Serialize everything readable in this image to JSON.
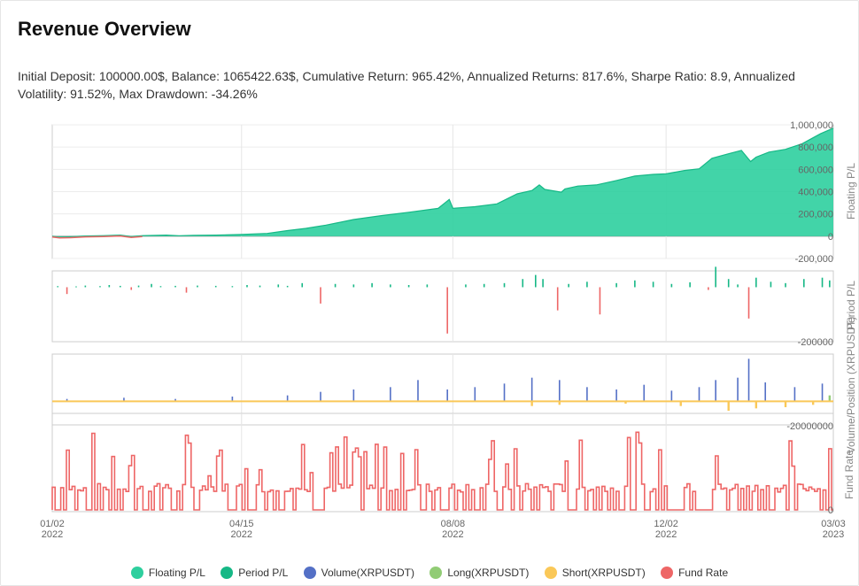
{
  "title": "Revenue Overview",
  "summary": "Initial Deposit: 100000.00$, Balance: 1065422.63$, Cumulative Return: 965.42%, Annualized Returns: 817.6%, Sharpe Ratio: 8.9, Annualized Volatility: 91.52%, Max Drawdown: -34.26%",
  "legend": [
    {
      "label": "Floating P/L",
      "color": "#2ecf9e"
    },
    {
      "label": "Period P/L",
      "color": "#16b886"
    },
    {
      "label": "Volume(XRPUSDT)",
      "color": "#5470c6"
    },
    {
      "label": "Long(XRPUSDT)",
      "color": "#91cc75"
    },
    {
      "label": "Short(XRPUSDT)",
      "color": "#fac858"
    },
    {
      "label": "Fund Rate",
      "color": "#ee6666"
    }
  ],
  "chart_data": {
    "type": "area",
    "x_range": [
      "2022-01-02",
      "2023-03-03"
    ],
    "x_ticks": [
      {
        "date": "2022-01-02",
        "line1": "01/02",
        "line2": "2022"
      },
      {
        "date": "2022-04-15",
        "line1": "04/15",
        "line2": "2022"
      },
      {
        "date": "2022-08-08",
        "line1": "08/08",
        "line2": "2022"
      },
      {
        "date": "2022-12-02",
        "line1": "12/02",
        "line2": "2022"
      },
      {
        "date": "2023-03-03",
        "line1": "03/03",
        "line2": "2023"
      }
    ],
    "panels": [
      {
        "name": "Floating P/L",
        "ylabel": "Floating P/L",
        "ylim": [
          -200000,
          1000000
        ],
        "yticks": [
          -200000,
          0,
          200000,
          400000,
          600000,
          800000,
          1000000
        ],
        "ytick_labels": [
          "-200,000",
          "0",
          "200,000",
          "400,000",
          "600,000",
          "800,000",
          "1,000,000"
        ],
        "color": "#2ecf9e",
        "negative_color": "#ee6666",
        "points": [
          [
            "2022-01-02",
            0
          ],
          [
            "2022-01-06",
            -10000
          ],
          [
            "2022-01-12",
            -5000
          ],
          [
            "2022-01-20",
            2000
          ],
          [
            "2022-01-30",
            5000
          ],
          [
            "2022-02-08",
            10000
          ],
          [
            "2022-02-14",
            -3000
          ],
          [
            "2022-02-20",
            5000
          ],
          [
            "2022-03-05",
            10000
          ],
          [
            "2022-03-12",
            4000
          ],
          [
            "2022-03-20",
            8000
          ],
          [
            "2022-04-01",
            10000
          ],
          [
            "2022-04-15",
            15000
          ],
          [
            "2022-04-29",
            25000
          ],
          [
            "2022-05-10",
            50000
          ],
          [
            "2022-05-20",
            70000
          ],
          [
            "2022-05-31",
            100000
          ],
          [
            "2022-06-15",
            150000
          ],
          [
            "2022-06-30",
            185000
          ],
          [
            "2022-07-15",
            215000
          ],
          [
            "2022-07-31",
            250000
          ],
          [
            "2022-08-06",
            330000
          ],
          [
            "2022-08-08",
            250000
          ],
          [
            "2022-08-20",
            265000
          ],
          [
            "2022-09-01",
            290000
          ],
          [
            "2022-09-12",
            380000
          ],
          [
            "2022-09-20",
            410000
          ],
          [
            "2022-09-24",
            460000
          ],
          [
            "2022-09-27",
            420000
          ],
          [
            "2022-10-06",
            395000
          ],
          [
            "2022-10-08",
            425000
          ],
          [
            "2022-10-15",
            450000
          ],
          [
            "2022-10-25",
            460000
          ],
          [
            "2022-11-05",
            500000
          ],
          [
            "2022-11-15",
            540000
          ],
          [
            "2022-11-25",
            555000
          ],
          [
            "2022-12-02",
            560000
          ],
          [
            "2022-12-12",
            590000
          ],
          [
            "2022-12-20",
            605000
          ],
          [
            "2022-12-27",
            700000
          ],
          [
            "2023-01-05",
            740000
          ],
          [
            "2023-01-12",
            770000
          ],
          [
            "2023-01-17",
            670000
          ],
          [
            "2023-01-20",
            710000
          ],
          [
            "2023-01-27",
            755000
          ],
          [
            "2023-02-05",
            780000
          ],
          [
            "2023-02-14",
            830000
          ],
          [
            "2023-02-24",
            920000
          ],
          [
            "2023-03-03",
            970000
          ]
        ]
      },
      {
        "name": "Period P/L",
        "ylabel": "Period P/L",
        "ylim": [
          -200000,
          60000
        ],
        "ytick_labels": [
          "-200000"
        ],
        "color": "#16b886",
        "negative_color": "#ee6666",
        "bars": [
          [
            "2022-01-05",
            4000
          ],
          [
            "2022-01-10",
            -25000
          ],
          [
            "2022-01-15",
            3000
          ],
          [
            "2022-01-20",
            6000
          ],
          [
            "2022-01-28",
            4000
          ],
          [
            "2022-02-02",
            8000
          ],
          [
            "2022-02-08",
            5000
          ],
          [
            "2022-02-14",
            -10000
          ],
          [
            "2022-02-18",
            6000
          ],
          [
            "2022-02-25",
            12000
          ],
          [
            "2022-03-02",
            4000
          ],
          [
            "2022-03-10",
            5000
          ],
          [
            "2022-03-16",
            -20000
          ],
          [
            "2022-03-22",
            6000
          ],
          [
            "2022-04-01",
            5000
          ],
          [
            "2022-04-10",
            4000
          ],
          [
            "2022-04-18",
            8000
          ],
          [
            "2022-04-25",
            6000
          ],
          [
            "2022-05-05",
            10000
          ],
          [
            "2022-05-10",
            5000
          ],
          [
            "2022-05-18",
            15000
          ],
          [
            "2022-05-28",
            -60000
          ],
          [
            "2022-06-05",
            12000
          ],
          [
            "2022-06-15",
            10000
          ],
          [
            "2022-06-25",
            15000
          ],
          [
            "2022-07-05",
            10000
          ],
          [
            "2022-07-15",
            8000
          ],
          [
            "2022-07-25",
            10000
          ],
          [
            "2022-08-05",
            -170000
          ],
          [
            "2022-08-15",
            10000
          ],
          [
            "2022-08-25",
            12000
          ],
          [
            "2022-09-05",
            15000
          ],
          [
            "2022-09-15",
            30000
          ],
          [
            "2022-09-22",
            45000
          ],
          [
            "2022-09-26",
            30000
          ],
          [
            "2022-10-04",
            -85000
          ],
          [
            "2022-10-10",
            12000
          ],
          [
            "2022-10-20",
            20000
          ],
          [
            "2022-10-27",
            -100000
          ],
          [
            "2022-11-05",
            15000
          ],
          [
            "2022-11-15",
            25000
          ],
          [
            "2022-11-25",
            20000
          ],
          [
            "2022-12-05",
            12000
          ],
          [
            "2022-12-15",
            18000
          ],
          [
            "2022-12-25",
            -10000
          ],
          [
            "2022-12-29",
            75000
          ],
          [
            "2023-01-05",
            30000
          ],
          [
            "2023-01-10",
            10000
          ],
          [
            "2023-01-16",
            -115000
          ],
          [
            "2023-01-20",
            35000
          ],
          [
            "2023-01-28",
            20000
          ],
          [
            "2023-02-05",
            15000
          ],
          [
            "2023-02-15",
            30000
          ],
          [
            "2023-02-25",
            35000
          ],
          [
            "2023-03-01",
            25000
          ]
        ]
      },
      {
        "name": "Volume/Position (XRPUSDT)",
        "ylabel": "Volume/Position (XRPUSDT)",
        "ylim": [
          -20000000,
          40000000
        ],
        "ytick_labels": [
          "-20000000"
        ],
        "volume_color": "#5470c6",
        "long_color": "#91cc75",
        "short_color": "#fac858",
        "volume": [
          [
            "2022-01-10",
            2000000
          ],
          [
            "2022-02-10",
            3000000
          ],
          [
            "2022-03-10",
            2000000
          ],
          [
            "2022-04-10",
            4000000
          ],
          [
            "2022-05-10",
            5000000
          ],
          [
            "2022-05-28",
            8000000
          ],
          [
            "2022-06-15",
            10000000
          ],
          [
            "2022-07-05",
            12000000
          ],
          [
            "2022-07-20",
            18000000
          ],
          [
            "2022-08-05",
            10000000
          ],
          [
            "2022-08-20",
            12000000
          ],
          [
            "2022-09-05",
            15000000
          ],
          [
            "2022-09-20",
            20000000
          ],
          [
            "2022-10-05",
            18000000
          ],
          [
            "2022-10-20",
            12000000
          ],
          [
            "2022-11-05",
            10000000
          ],
          [
            "2022-11-20",
            14000000
          ],
          [
            "2022-12-05",
            9000000
          ],
          [
            "2022-12-20",
            12000000
          ],
          [
            "2022-12-29",
            18000000
          ],
          [
            "2023-01-10",
            20000000
          ],
          [
            "2023-01-16",
            36000000
          ],
          [
            "2023-01-25",
            16000000
          ],
          [
            "2023-02-10",
            12000000
          ],
          [
            "2023-02-25",
            15000000
          ]
        ],
        "short": [
          [
            "2022-09-20",
            -4000000
          ],
          [
            "2022-10-05",
            -3000000
          ],
          [
            "2022-11-10",
            -2000000
          ],
          [
            "2022-12-10",
            -4000000
          ],
          [
            "2023-01-05",
            -8000000
          ],
          [
            "2023-01-20",
            -6000000
          ],
          [
            "2023-02-05",
            -5000000
          ],
          [
            "2023-02-20",
            -3000000
          ]
        ],
        "long": [
          [
            "2023-03-01",
            5000000
          ]
        ]
      },
      {
        "name": "Fund Rate",
        "ylabel": "Fund Rate",
        "ytick_labels": [
          "0"
        ],
        "color": "#ee6666",
        "ylim": [
          0,
          1
        ]
      }
    ]
  }
}
